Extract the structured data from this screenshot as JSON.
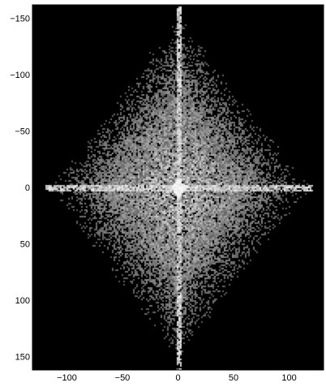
{
  "chart_data": {
    "type": "heatmap",
    "title": "",
    "xlabel": "",
    "ylabel": "",
    "xlim": [
      -131,
      131
    ],
    "ylim": [
      162,
      -162
    ],
    "y_axis_direction": "down",
    "x_ticks": [
      -100,
      -50,
      0,
      50,
      100
    ],
    "x_tick_labels": [
      "−100",
      "−50",
      "0",
      "50",
      "100"
    ],
    "y_ticks": [
      -150,
      -100,
      -50,
      0,
      50,
      100,
      150
    ],
    "y_tick_labels": [
      "−150",
      "−100",
      "−50",
      "0",
      "50",
      "100",
      "150"
    ],
    "colormap": "gray",
    "background": "#000000",
    "description_of_values": "2D Fourier magnitude spectrum centred at (0,0): diamond-shaped bright region, bright horizontal and vertical streaks through the origin",
    "diamond_extent": {
      "x_half_width": 115,
      "y_half_height": 150
    },
    "grid": false
  }
}
